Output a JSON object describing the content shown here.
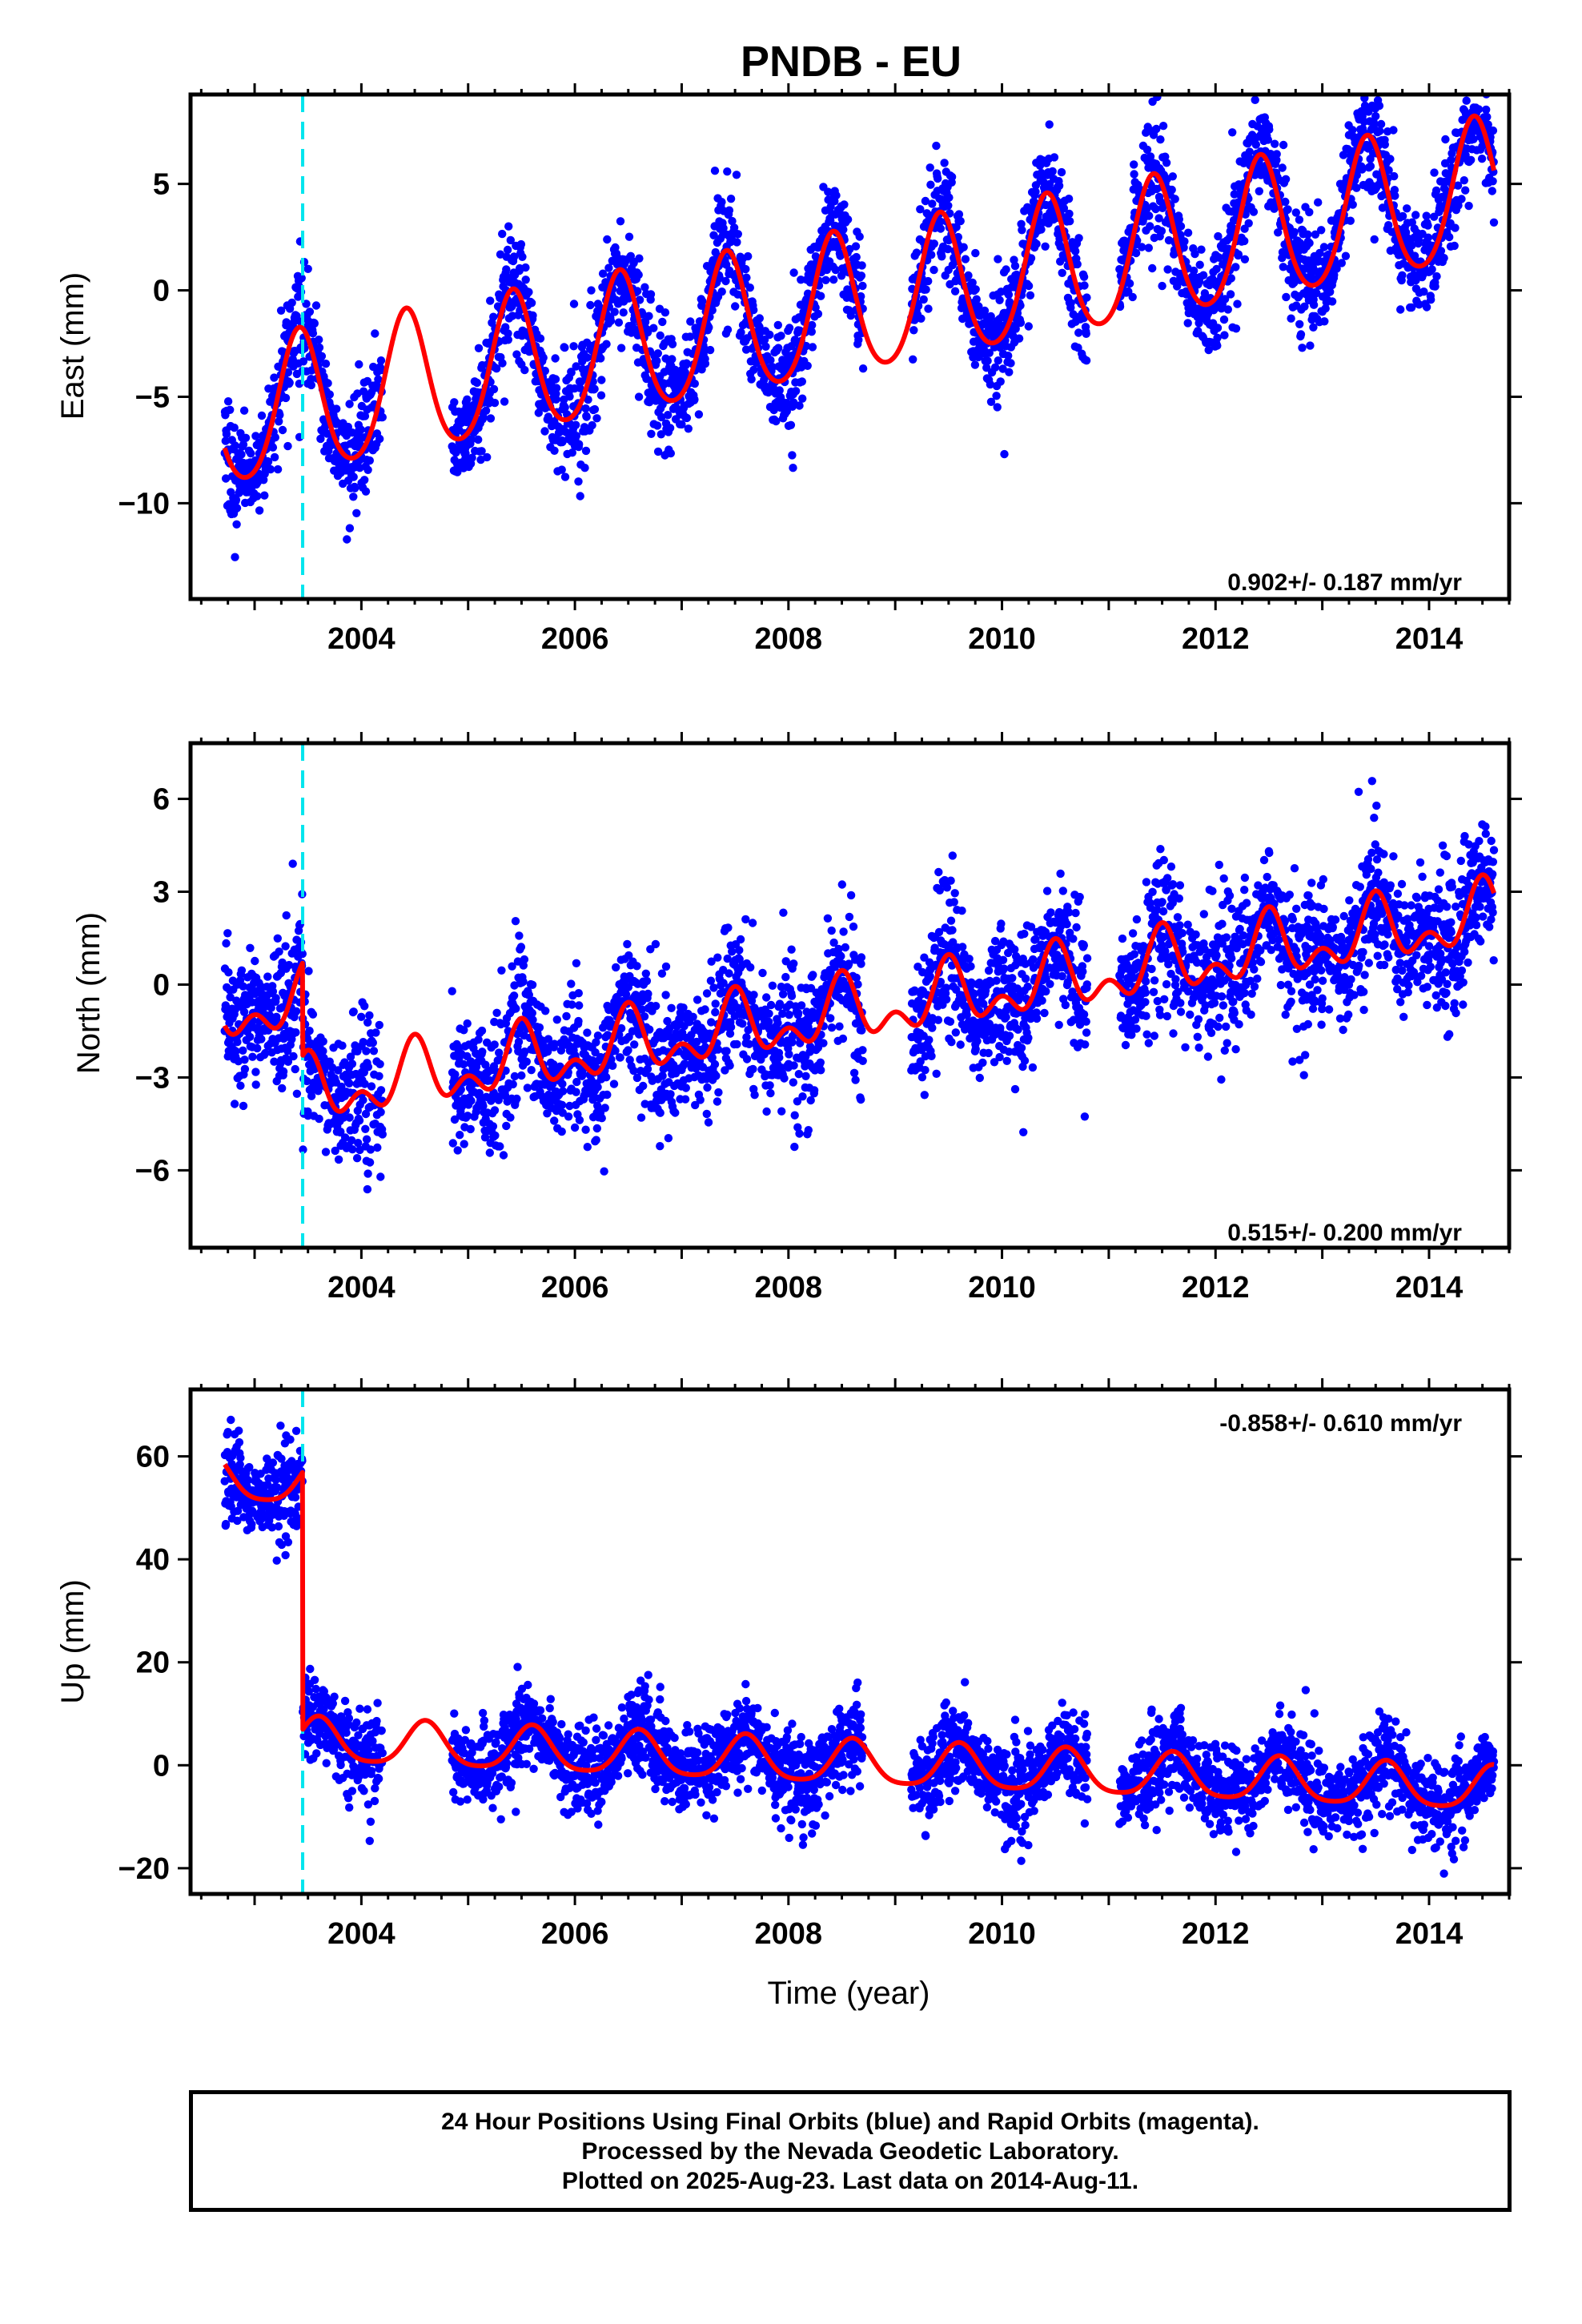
{
  "page": {
    "title": "PNDB - EU"
  },
  "chart_data": [
    {
      "type": "scatter",
      "title": "PNDB - EU",
      "ylabel": "East (mm)",
      "xlabel": "",
      "xlim": [
        2002.4,
        2014.75
      ],
      "ylim": [
        -14.5,
        9.2
      ],
      "xticks": [
        2004,
        2006,
        2008,
        2010,
        2012,
        2014
      ],
      "yticks": [
        -10,
        -5,
        0,
        5
      ],
      "ytick_labels": [
        "−10",
        "−5",
        "0",
        "5"
      ],
      "rate_label": "0.902+/- 0.187 mm/yr",
      "rate_position": "bottom-right",
      "colors": {
        "final_orbits": "#0000ff",
        "model": "#ff0000",
        "offset_line": "#00e5ee"
      },
      "offset_epochs": [
        2003.45
      ],
      "data_start": 2002.72,
      "data_end": 2014.61,
      "gaps": [
        [
          2004.2,
          2004.85
        ],
        [
          2008.7,
          2009.15
        ],
        [
          2010.8,
          2011.1
        ]
      ],
      "model": {
        "reference_epoch": 2008.0,
        "value_at_reference": -1.3,
        "rate": 0.902,
        "annual_amplitude": 3.3,
        "annual_peak": 2008.42,
        "semiannual_amplitude": 0.4,
        "steps": []
      },
      "scatter_sd": 1.3
    },
    {
      "type": "scatter",
      "ylabel": "North (mm)",
      "xlabel": "",
      "xlim": [
        2002.4,
        2014.75
      ],
      "ylim": [
        -8.5,
        7.8
      ],
      "xticks": [
        2004,
        2006,
        2008,
        2010,
        2012,
        2014
      ],
      "yticks": [
        -6,
        -3,
        0,
        3,
        6
      ],
      "ytick_labels": [
        "−6",
        "−3",
        "0",
        "3",
        "6"
      ],
      "rate_label": "0.515+/- 0.200 mm/yr",
      "rate_position": "bottom-right",
      "colors": {
        "final_orbits": "#0000ff",
        "model": "#ff0000",
        "offset_line": "#00e5ee"
      },
      "offset_epochs": [
        2003.45
      ],
      "data_start": 2002.72,
      "data_end": 2014.61,
      "gaps": [
        [
          2004.2,
          2004.85
        ],
        [
          2008.7,
          2009.15
        ],
        [
          2010.8,
          2011.1
        ]
      ],
      "model": {
        "reference_epoch": 2008.0,
        "value_at_reference": -1.2,
        "rate": 0.515,
        "annual_amplitude": 0.8,
        "annual_peak": 2008.5,
        "semiannual_amplitude": 0.6,
        "steps": [
          {
            "epoch": 2003.45,
            "size": -3.0
          }
        ]
      },
      "scatter_sd": 1.1
    },
    {
      "type": "scatter",
      "ylabel": "Up (mm)",
      "xlabel": "Time (year)",
      "xlim": [
        2002.4,
        2014.75
      ],
      "ylim": [
        -25,
        73
      ],
      "xticks": [
        2004,
        2006,
        2008,
        2010,
        2012,
        2014
      ],
      "yticks": [
        -20,
        0,
        20,
        40,
        60
      ],
      "ytick_labels": [
        "−20",
        "0",
        "20",
        "40",
        "60"
      ],
      "rate_label": "-0.858+/- 0.610 mm/yr",
      "rate_position": "top-right",
      "colors": {
        "final_orbits": "#0000ff",
        "model": "#ff0000",
        "offset_line": "#00e5ee"
      },
      "offset_epochs": [
        2003.45
      ],
      "data_start": 2002.72,
      "data_end": 2014.61,
      "gaps": [
        [
          2004.2,
          2004.85
        ],
        [
          2008.7,
          2009.15
        ],
        [
          2010.8,
          2011.1
        ]
      ],
      "model": {
        "reference_epoch": 2008.0,
        "value_at_reference": 0.8,
        "rate": -0.858,
        "annual_amplitude": 4.2,
        "annual_peak": 2008.6,
        "semiannual_amplitude": 0.8,
        "steps": [
          {
            "epoch": 2003.45,
            "size": -50.0
          }
        ]
      },
      "scatter_sd": 4.0
    }
  ],
  "caption": {
    "line1": "24 Hour Positions Using Final Orbits (blue) and Rapid Orbits (magenta).",
    "line2": "Processed by the Nevada Geodetic Laboratory.",
    "line3": "Plotted on 2025-Aug-23. Last data on 2014-Aug-11."
  }
}
